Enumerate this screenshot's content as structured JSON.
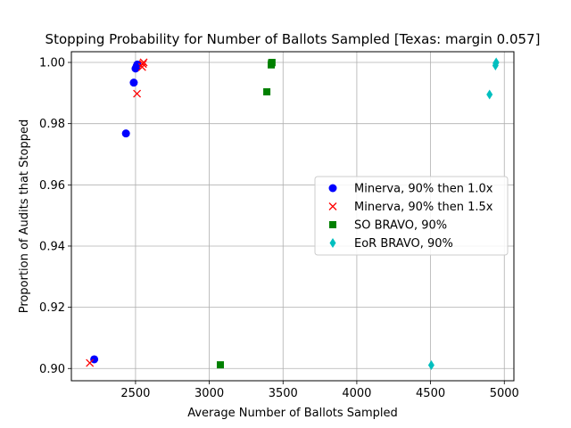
{
  "chart_data": {
    "type": "scatter",
    "title": "Stopping Probability for Number of Ballots Sampled [Texas: margin 0.057]",
    "xlabel": "Average Number of Ballots Sampled",
    "ylabel": "Proportion of Audits that Stopped",
    "xlim": [
      2065,
      5065
    ],
    "ylim": [
      0.896,
      1.0035
    ],
    "grid": true,
    "legend_position": "center-right",
    "xticks": [
      2500,
      3000,
      3500,
      4000,
      4500,
      5000
    ],
    "xtick_labels": [
      "2500",
      "3000",
      "3500",
      "4000",
      "4500",
      "5000"
    ],
    "yticks": [
      0.9,
      0.92,
      0.94,
      0.96,
      0.98,
      1.0
    ],
    "ytick_labels": [
      "0.90",
      "0.92",
      "0.94",
      "0.96",
      "0.98",
      "1.00"
    ],
    "series": [
      {
        "name": "Minerva, 90% then 1.0x",
        "marker": "circle",
        "color": "#0000ff",
        "points": [
          [
            2220,
            0.903
          ],
          [
            2435,
            0.9768
          ],
          [
            2488,
            0.9934
          ],
          [
            2500,
            0.998
          ],
          [
            2508,
            0.9988
          ],
          [
            2512,
            0.9993
          ]
        ]
      },
      {
        "name": "Minerva, 90% then 1.5x",
        "marker": "x",
        "color": "#ff0000",
        "points": [
          [
            2190,
            0.9018
          ],
          [
            2510,
            0.9898
          ],
          [
            2545,
            0.9985
          ],
          [
            2550,
            0.9995
          ],
          [
            2555,
            1.0
          ]
        ]
      },
      {
        "name": "SO BRAVO, 90%",
        "marker": "square",
        "color": "#008000",
        "points": [
          [
            3075,
            0.9012
          ],
          [
            3390,
            0.9904
          ],
          [
            3420,
            0.9992
          ],
          [
            3422,
            0.9998
          ],
          [
            3425,
            1.0
          ]
        ]
      },
      {
        "name": "EoR BRAVO, 90%",
        "marker": "diamond",
        "color": "#00bfbf",
        "points": [
          [
            4505,
            0.9011
          ],
          [
            4900,
            0.9895
          ],
          [
            4940,
            0.999
          ],
          [
            4942,
            0.9997
          ],
          [
            4945,
            1.0
          ]
        ]
      }
    ]
  }
}
